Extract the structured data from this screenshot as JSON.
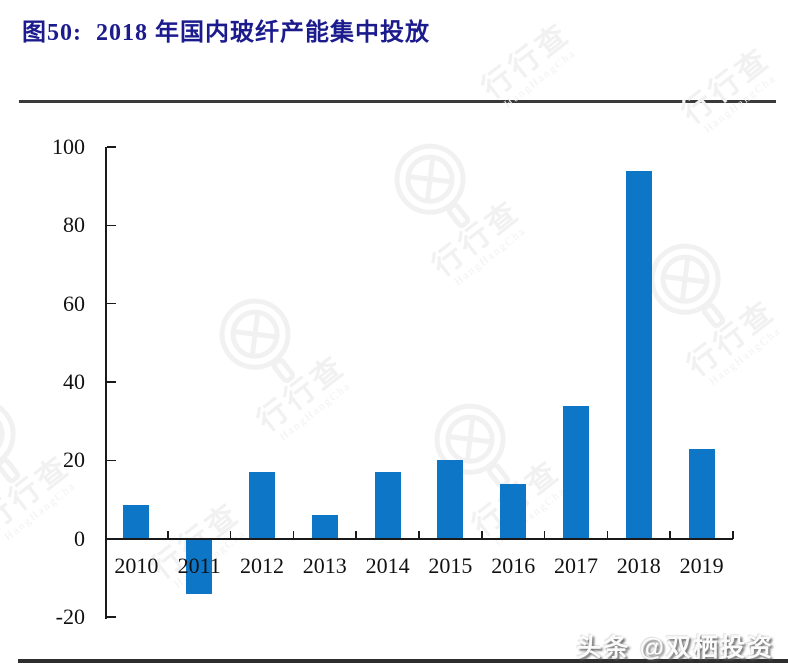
{
  "figure": {
    "title": "图50:  2018 年国内玻纤产能集中投放"
  },
  "watermark": {
    "brand_cn": "行行查",
    "brand_en": "HangHangCha"
  },
  "credit": {
    "text": "头条 @双栖投资"
  },
  "colors": {
    "bar": "#0e76c6",
    "title": "#1b1b8e",
    "axis": "#1a1a1a",
    "rule": "#3a3a3a",
    "watermark": "#f1f1f1"
  },
  "chart_data": {
    "type": "bar",
    "title": "图50: 2018 年国内玻纤产能集中投放",
    "categories": [
      "2010",
      "2011",
      "2012",
      "2013",
      "2014",
      "2015",
      "2016",
      "2017",
      "2018",
      "2019"
    ],
    "values": [
      8.5,
      -14,
      17,
      6,
      17,
      20,
      14,
      34,
      94,
      23
    ],
    "xlabel": "",
    "ylabel": "",
    "ylim": [
      -20,
      100
    ],
    "yticks": [
      100,
      80,
      60,
      40,
      20,
      0,
      -20
    ],
    "grid": false,
    "legend": null,
    "bar_color": "#0e76c6",
    "axis_note": "ticks point inward; x tick marks at category boundaries"
  }
}
